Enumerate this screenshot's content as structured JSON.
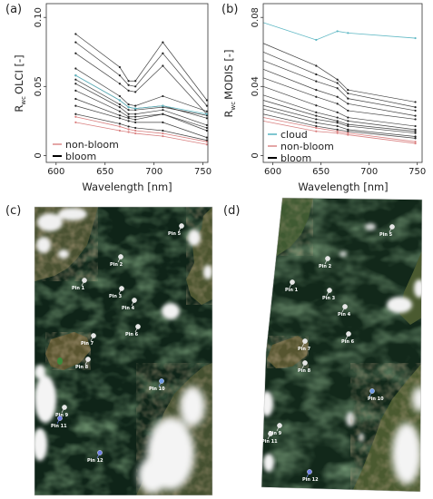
{
  "chart_data": [
    {
      "panel": "(a)",
      "type": "line",
      "xlabel": "Wavelength [nm]",
      "ylabel_main": "R",
      "ylabel_sub": "wc",
      "ylabel_rest": "OLCI [-]",
      "xlim": [
        590,
        755
      ],
      "ylim": [
        -0.005,
        0.11
      ],
      "x_ticks": [
        600,
        650,
        700,
        750
      ],
      "y_ticks": [
        0,
        0.05,
        0.1
      ],
      "y_tick_labels": [
        "0",
        "0.05",
        "0.10"
      ],
      "x": [
        620,
        665,
        674,
        681,
        709,
        754
      ],
      "legend": [
        {
          "label": "non-bloom",
          "color": "#d98080"
        },
        {
          "label": "bloom",
          "color": "#000000"
        }
      ],
      "series": [
        {
          "group": "bloom",
          "values": [
            0.088,
            0.064,
            0.054,
            0.054,
            0.082,
            0.04
          ]
        },
        {
          "group": "bloom",
          "values": [
            0.082,
            0.058,
            0.051,
            0.05,
            0.074,
            0.036
          ]
        },
        {
          "group": "bloom",
          "values": [
            0.074,
            0.052,
            0.047,
            0.046,
            0.065,
            0.03
          ]
        },
        {
          "group": "bloom",
          "values": [
            0.063,
            0.043,
            0.037,
            0.036,
            0.043,
            0.032
          ]
        },
        {
          "group": "bloom",
          "values": [
            0.058,
            0.04,
            0.035,
            0.034,
            0.036,
            0.027
          ]
        },
        {
          "group": "bloom",
          "values": [
            0.055,
            0.037,
            0.033,
            0.033,
            0.035,
            0.029
          ]
        },
        {
          "group": "bloom",
          "values": [
            0.052,
            0.035,
            0.03,
            0.03,
            0.033,
            0.022
          ]
        },
        {
          "group": "bloom",
          "values": [
            0.047,
            0.032,
            0.028,
            0.028,
            0.03,
            0.02
          ]
        },
        {
          "group": "bloom",
          "values": [
            0.041,
            0.029,
            0.027,
            0.026,
            0.03,
            0.018
          ]
        },
        {
          "group": "bloom",
          "values": [
            0.036,
            0.027,
            0.025,
            0.024,
            0.024,
            0.013
          ]
        },
        {
          "group": "bloom",
          "values": [
            0.03,
            0.023,
            0.021,
            0.02,
            0.018,
            0.011
          ]
        },
        {
          "group": "cloud",
          "values": [
            0.058,
            0.04,
            0.035,
            0.034,
            0.036,
            0.03
          ]
        },
        {
          "group": "non-bloom",
          "values": [
            0.024,
            0.018,
            0.017,
            0.016,
            0.014,
            0.008
          ]
        },
        {
          "group": "non-bloom",
          "values": [
            0.028,
            0.021,
            0.019,
            0.018,
            0.016,
            0.01
          ]
        }
      ]
    },
    {
      "panel": "(b)",
      "type": "line",
      "xlabel": "Wavelength [nm]",
      "ylabel_main": "R",
      "ylabel_sub": "wc",
      "ylabel_rest": "MODIS [-]",
      "xlim": [
        590,
        755
      ],
      "ylim": [
        -0.004,
        0.088
      ],
      "x_ticks": [
        600,
        650,
        700,
        750
      ],
      "y_ticks": [
        0,
        0.04,
        0.08
      ],
      "y_tick_labels": [
        "0",
        "0.04",
        "0.08"
      ],
      "x": [
        645,
        667,
        678,
        748
      ],
      "legend": [
        {
          "label": "cloud",
          "color": "#5fb8c4"
        },
        {
          "label": "non-bloom",
          "color": "#d98080"
        },
        {
          "label": "bloom",
          "color": "#000000"
        }
      ],
      "series": [
        {
          "group": "cloud",
          "values": [
            0.067,
            0.072,
            0.071,
            0.068
          ],
          "start": [
            590,
            0.077
          ]
        },
        {
          "group": "bloom",
          "values": [
            0.052,
            0.044,
            0.038,
            0.031
          ],
          "start": [
            590,
            0.065
          ]
        },
        {
          "group": "bloom",
          "values": [
            0.047,
            0.042,
            0.036,
            0.028
          ],
          "start": [
            590,
            0.06
          ]
        },
        {
          "group": "bloom",
          "values": [
            0.043,
            0.039,
            0.033,
            0.026
          ],
          "start": [
            590,
            0.055
          ]
        },
        {
          "group": "bloom",
          "values": [
            0.038,
            0.034,
            0.03,
            0.023
          ],
          "start": [
            590,
            0.05
          ]
        },
        {
          "group": "bloom",
          "values": [
            0.034,
            0.03,
            0.026,
            0.021
          ],
          "start": [
            590,
            0.045
          ]
        },
        {
          "group": "bloom",
          "values": [
            0.029,
            0.025,
            0.022,
            0.017
          ],
          "start": [
            590,
            0.04
          ]
        },
        {
          "group": "bloom",
          "values": [
            0.025,
            0.022,
            0.02,
            0.015
          ],
          "start": [
            590,
            0.035
          ]
        },
        {
          "group": "bloom",
          "values": [
            0.023,
            0.02,
            0.018,
            0.014
          ],
          "start": [
            590,
            0.032
          ]
        },
        {
          "group": "bloom",
          "values": [
            0.021,
            0.019,
            0.017,
            0.013
          ],
          "start": [
            590,
            0.029
          ]
        },
        {
          "group": "bloom",
          "values": [
            0.019,
            0.017,
            0.015,
            0.011
          ],
          "start": [
            590,
            0.027
          ]
        },
        {
          "group": "bloom",
          "values": [
            0.017,
            0.015,
            0.014,
            0.01
          ],
          "start": [
            590,
            0.024
          ]
        },
        {
          "group": "non-bloom",
          "values": [
            0.016,
            0.014,
            0.013,
            0.008
          ],
          "start": [
            590,
            0.022
          ]
        },
        {
          "group": "non-bloom",
          "values": [
            0.014,
            0.013,
            0.012,
            0.007
          ],
          "start": [
            590,
            0.02
          ]
        }
      ]
    }
  ],
  "maps": [
    {
      "panel": "(c)",
      "pins": [
        {
          "label": "Pin 5",
          "color": "#e6e6e6"
        },
        {
          "label": "Pin 2",
          "color": "#e6e6e6"
        },
        {
          "label": "Pin 1",
          "color": "#e6e6e6"
        },
        {
          "label": "Pin 3",
          "color": "#e6e6e6"
        },
        {
          "label": "Pin 4",
          "color": "#e6e6e6"
        },
        {
          "label": "Pin 6",
          "color": "#e6e6e6"
        },
        {
          "label": "Pin 7",
          "color": "#e6e6e6"
        },
        {
          "label": "Pin 8",
          "color": "#e6e6e6"
        },
        {
          "label": "Pin 9",
          "color": "#e6e6e6"
        },
        {
          "label": "Pin 11",
          "color": "#6f7fe6"
        },
        {
          "label": "Pin 12",
          "color": "#6f7fe6"
        },
        {
          "label": "Pin 10",
          "color": "#6f9ae6"
        }
      ]
    },
    {
      "panel": "(d)",
      "pins": [
        {
          "label": "Pin 5",
          "color": "#e6e6e6"
        },
        {
          "label": "Pin 2",
          "color": "#e6e6e6"
        },
        {
          "label": "Pin 1",
          "color": "#e6e6e6"
        },
        {
          "label": "Pin 3",
          "color": "#e6e6e6"
        },
        {
          "label": "Pin 4",
          "color": "#e6e6e6"
        },
        {
          "label": "Pin 6",
          "color": "#e6e6e6"
        },
        {
          "label": "Pin 7",
          "color": "#e6e6e6"
        },
        {
          "label": "Pin 8",
          "color": "#e6e6e6"
        },
        {
          "label": "Pin 10",
          "color": "#6f9ae6"
        },
        {
          "label": "Pin 9",
          "color": "#e6e6e6"
        },
        {
          "label": "Pin 11",
          "color": "#e6e6e6"
        },
        {
          "label": "Pin 12",
          "color": "#6f7fe6"
        }
      ]
    }
  ],
  "colors": {
    "bloom": "#222222",
    "non-bloom": "#d98080",
    "cloud": "#5fb8c4",
    "sea": "#0f2418",
    "bloom_water": "#2e4a2a",
    "land": "#4d5a32",
    "cloud_fill": "#f2f2f2"
  }
}
